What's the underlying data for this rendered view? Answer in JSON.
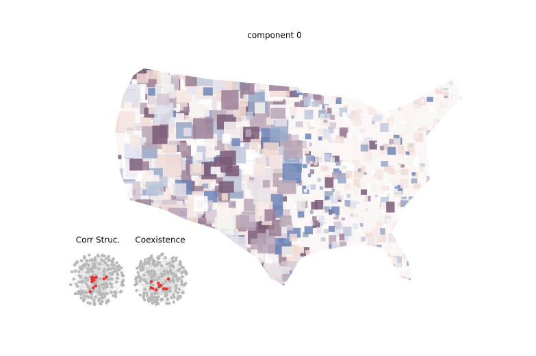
{
  "title": "component 0",
  "insets": [
    {
      "label": "Corr Struc."
    },
    {
      "label": "Coexistence"
    }
  ]
}
